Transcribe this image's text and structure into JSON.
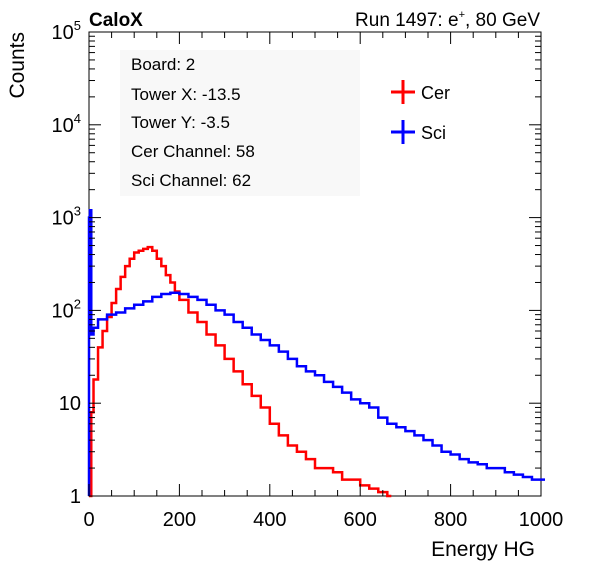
{
  "header": {
    "experiment": "CaloX",
    "run_prefix": "Run 1497: e",
    "run_sup": "+",
    "run_suffix": ", 80 GeV"
  },
  "info_box": {
    "board": "Board: 2",
    "tower_x": "Tower X: -13.5",
    "tower_y": "Tower Y: -3.5",
    "cer_channel": "Cer Channel: 58",
    "sci_channel": "Sci Channel: 62"
  },
  "colors": {
    "cer": "#ff0000",
    "sci": "#0000ff",
    "axis": "#000000",
    "info_bg": "#f8f8f8"
  },
  "chart_data": {
    "type": "line",
    "style": "step histogram",
    "xlabel": "Energy HG",
    "ylabel": "Counts",
    "xlim": [
      0,
      1000
    ],
    "ylim": [
      1,
      100000
    ],
    "yscale": "log",
    "x_ticks": [
      "0",
      "200",
      "400",
      "600",
      "800",
      "1000"
    ],
    "y_ticks": [
      {
        "base": "1",
        "exp": ""
      },
      {
        "base": "10",
        "exp": ""
      },
      {
        "base": "10",
        "exp": "2"
      },
      {
        "base": "10",
        "exp": "3"
      },
      {
        "base": "10",
        "exp": "4"
      },
      {
        "base": "10",
        "exp": "5"
      }
    ],
    "grid": false,
    "legend_position": "top-right",
    "series": [
      {
        "name": "Cer",
        "color": "#ff0000",
        "x": [
          0,
          5,
          10,
          20,
          30,
          40,
          50,
          60,
          70,
          80,
          90,
          100,
          110,
          120,
          130,
          140,
          150,
          160,
          170,
          180,
          190,
          200,
          220,
          240,
          260,
          280,
          300,
          320,
          340,
          360,
          380,
          400,
          420,
          440,
          460,
          480,
          500,
          520,
          540,
          560,
          580,
          600,
          620,
          640,
          660
        ],
        "y": [
          1,
          8,
          18,
          40,
          60,
          85,
          120,
          170,
          230,
          300,
          360,
          420,
          440,
          460,
          480,
          440,
          360,
          300,
          240,
          200,
          160,
          130,
          95,
          75,
          55,
          42,
          30,
          22,
          16,
          12,
          9,
          6,
          4.5,
          3.5,
          3,
          2.5,
          2,
          2,
          1.8,
          1.5,
          1.5,
          1.3,
          1.2,
          1.1,
          1
        ]
      },
      {
        "name": "Sci",
        "color": "#0000ff",
        "x": [
          0,
          2,
          5,
          10,
          20,
          40,
          60,
          80,
          100,
          120,
          140,
          160,
          180,
          200,
          220,
          240,
          260,
          280,
          300,
          320,
          340,
          360,
          380,
          400,
          420,
          440,
          460,
          480,
          500,
          520,
          540,
          560,
          580,
          600,
          620,
          640,
          660,
          680,
          700,
          720,
          740,
          760,
          780,
          800,
          820,
          840,
          860,
          880,
          900,
          920,
          940,
          960,
          980,
          1000
        ],
        "y": [
          1000,
          1200,
          55,
          65,
          80,
          90,
          95,
          105,
          115,
          125,
          140,
          150,
          155,
          150,
          140,
          130,
          115,
          100,
          90,
          75,
          65,
          55,
          48,
          42,
          36,
          30,
          25,
          22,
          20,
          17,
          15,
          13,
          11,
          10,
          9,
          7,
          6,
          5.5,
          5,
          4.5,
          4,
          3.5,
          3,
          2.8,
          2.5,
          2.3,
          2.2,
          2,
          2,
          1.8,
          1.7,
          1.6,
          1.5,
          1.5
        ]
      }
    ]
  }
}
